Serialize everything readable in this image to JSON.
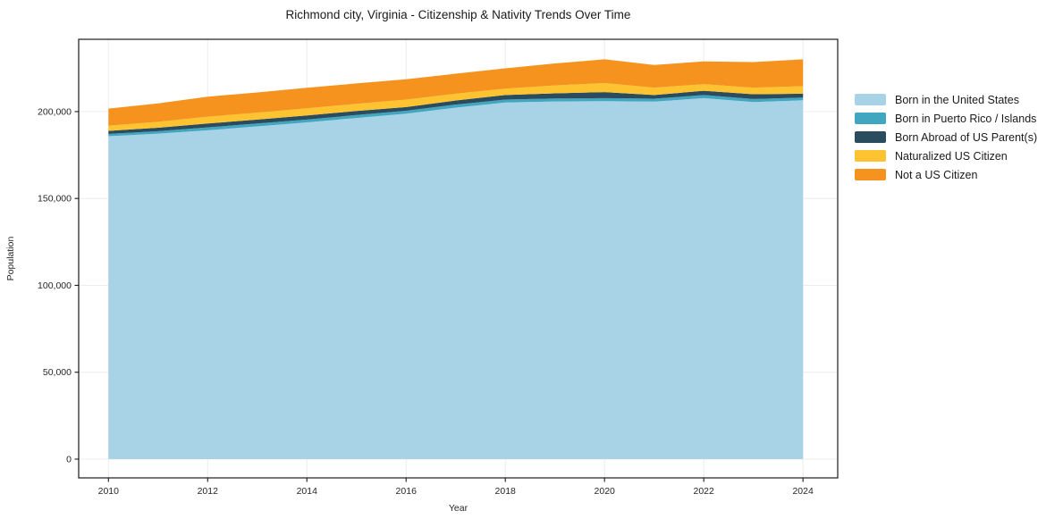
{
  "title": "Richmond city, Virginia - Citizenship & Nativity Trends Over Time",
  "chart_data": {
    "type": "area",
    "stacked": true,
    "title": "Richmond city, Virginia - Citizenship & Nativity Trends Over Time",
    "xlabel": "Year",
    "ylabel": "Population",
    "grid": true,
    "legend_position": "right-outside",
    "background": "#ffffff",
    "gridline_color": "#ececec",
    "frame_color": "#1a1a1a",
    "xlim": [
      2009.4,
      2024.7
    ],
    "ylim": [
      -10800,
      241600
    ],
    "x": [
      2010,
      2011,
      2012,
      2013,
      2014,
      2015,
      2016,
      2017,
      2018,
      2019,
      2020,
      2021,
      2022,
      2023,
      2024
    ],
    "x_ticks": [
      2010,
      2012,
      2014,
      2016,
      2018,
      2020,
      2022,
      2024
    ],
    "x_tick_labels": [
      "2010",
      "2012",
      "2014",
      "2016",
      "2018",
      "2020",
      "2022",
      "2024"
    ],
    "y_ticks": [
      0,
      50000,
      100000,
      150000,
      200000
    ],
    "y_tick_labels": [
      "0",
      "50,000",
      "100,000",
      "150,000",
      "200,000"
    ],
    "series": [
      {
        "name": "Born in the United States",
        "color": "#a8d3e6",
        "values": [
          185800,
          187300,
          189200,
          191500,
          193800,
          196300,
          198800,
          202300,
          205200,
          205800,
          206000,
          205700,
          207700,
          205500,
          206500
        ]
      },
      {
        "name": "Born in Puerto Rico / Islands",
        "color": "#41a6bf",
        "values": [
          1300,
          1400,
          1700,
          1600,
          1600,
          1700,
          1700,
          1700,
          1700,
          1700,
          1700,
          1700,
          1800,
          1700,
          1600
        ]
      },
      {
        "name": "Born Abroad of US Parent(s)",
        "color": "#2b4c5f",
        "values": [
          1800,
          2000,
          2300,
          2300,
          2400,
          2300,
          2100,
          2400,
          2600,
          3000,
          3500,
          2100,
          2500,
          2800,
          2200
        ]
      },
      {
        "name": "Naturalized US Citizen",
        "color": "#fdc330",
        "values": [
          3000,
          3400,
          3900,
          4000,
          4100,
          4200,
          4300,
          3900,
          3700,
          4600,
          5200,
          4300,
          3800,
          3800,
          4300
        ]
      },
      {
        "name": "Not a US Citizen",
        "color": "#f6931e",
        "values": [
          9800,
          10600,
          11500,
          11600,
          11800,
          11700,
          11700,
          11500,
          11700,
          12600,
          13700,
          13000,
          13100,
          14700,
          15500
        ]
      }
    ]
  }
}
